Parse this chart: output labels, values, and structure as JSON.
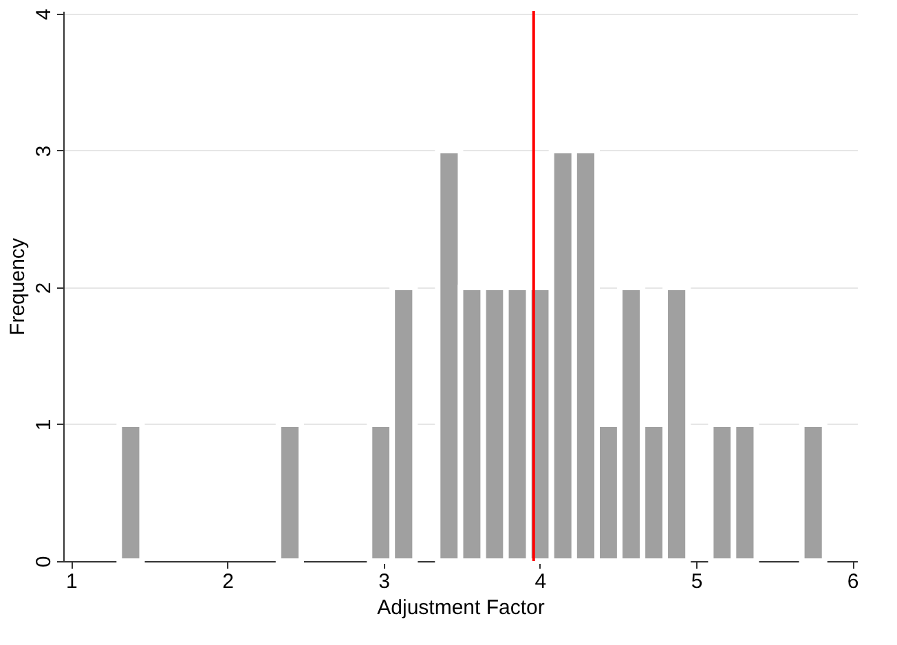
{
  "chart_data": {
    "type": "histogram",
    "xlabel": "Adjustment Factor",
    "ylabel": "Frequency",
    "bins": [
      1.308,
      1.454,
      1.599,
      1.745,
      1.89,
      2.036,
      2.182,
      2.327,
      2.473,
      2.618,
      2.764,
      2.91,
      3.055,
      3.201,
      3.346,
      3.492,
      3.638,
      3.783,
      3.929,
      4.074,
      4.22,
      4.366,
      4.511,
      4.657,
      4.802,
      4.948,
      5.094,
      5.239,
      5.385,
      5.53,
      5.676,
      5.822
    ],
    "values": [
      1,
      0,
      0,
      0,
      0,
      0,
      0,
      1,
      0,
      0,
      0,
      1,
      2,
      0,
      3,
      2,
      2,
      2,
      2,
      3,
      3,
      1,
      2,
      1,
      2,
      0,
      1,
      1,
      0,
      0,
      1
    ],
    "color": "#a0a0a0",
    "xlim": [
      0.95,
      6.03
    ],
    "xticks": [
      1,
      2,
      3,
      4,
      5,
      6
    ],
    "ylim": [
      0,
      4.02
    ],
    "yticks": [
      0,
      1,
      2,
      3,
      4
    ],
    "grid": "y",
    "ref_lines": [
      {
        "axis": "x",
        "value": 3.96,
        "color": "#ff0000"
      }
    ]
  }
}
